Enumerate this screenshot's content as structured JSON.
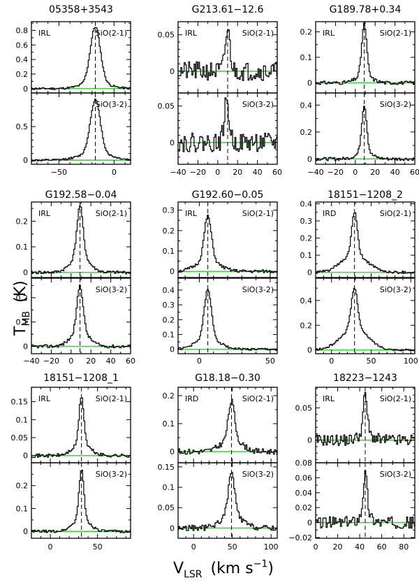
{
  "figure": {
    "ylabel_main": "T",
    "ylabel_sub": "MB",
    "ylabel_unit": "(K)",
    "xlabel_main": "V",
    "xlabel_sub": "LSR",
    "xlabel_unit_pre": "(km s",
    "xlabel_unit_exp": "−1",
    "xlabel_unit_post": ")"
  },
  "colors": {
    "spectrum": "#000000",
    "baseline": "#33dd33",
    "vline": "#000000",
    "frame": "#000000"
  },
  "chart_data": [
    {
      "type": "line",
      "title": "05358+3543",
      "classification": "IRL",
      "xlim": [
        -75,
        15
      ],
      "xticks": [
        -50,
        0
      ],
      "xminor": 10,
      "vlsr": -17,
      "panels": [
        {
          "line": "SiO(2-1)",
          "ylim": [
            -0.06,
            0.92
          ],
          "yticks": [
            0,
            0.2,
            0.4,
            0.6,
            0.8
          ],
          "yminor": 0.1,
          "peak": 0.85,
          "center": -17,
          "narrow": 4.5,
          "wide": 12,
          "wideFrac": 0.1,
          "noise": 0.015,
          "seed": 11
        },
        {
          "line": "SiO(3-2)",
          "ylim": [
            -0.06,
            1.0
          ],
          "yticks": [
            0,
            0.5
          ],
          "yminor": 0.1,
          "peak": 0.9,
          "center": -17,
          "narrow": 4.5,
          "wide": 14,
          "wideFrac": 0.12,
          "noise": 0.015,
          "seed": 12
        }
      ]
    },
    {
      "type": "line",
      "title": "G213.61−12.6",
      "classification": "IRL",
      "xlim": [
        -40,
        60
      ],
      "xticks": [
        -40,
        -20,
        0,
        20,
        40,
        60
      ],
      "xminor": 10,
      "vlsr": 10,
      "panels": [
        {
          "line": "SiO(2-1)",
          "ylim": [
            -0.03,
            0.068
          ],
          "yticks": [
            0,
            0.05
          ],
          "yminor": 0.01,
          "peak": 0.055,
          "center": 10,
          "narrow": 2.5,
          "wide": 6,
          "wideFrac": 0.0,
          "noise": 0.013,
          "seed": 21
        },
        {
          "line": "SiO(3-2)",
          "ylim": [
            -0.03,
            0.068
          ],
          "yticks": [
            0,
            0.05
          ],
          "yminor": 0.01,
          "peak": 0.055,
          "center": 9,
          "narrow": 2.5,
          "wide": 6,
          "wideFrac": 0.0,
          "noise": 0.013,
          "seed": 22
        }
      ]
    },
    {
      "type": "line",
      "title": "G189.78+0.34",
      "classification": "IRL",
      "xlim": [
        -40,
        60
      ],
      "xticks": [
        -40,
        -20,
        0,
        20,
        40,
        60
      ],
      "xminor": 10,
      "vlsr": 9,
      "panels": [
        {
          "line": "SiO(2-1)",
          "ylim": [
            -0.04,
            0.24
          ],
          "yticks": [
            0,
            0.1,
            0.2
          ],
          "yminor": 0.05,
          "peak": 0.23,
          "center": 9,
          "narrow": 2.5,
          "wide": 8,
          "wideFrac": 0.12,
          "noise": 0.007,
          "seed": 31
        },
        {
          "line": "SiO(3-2)",
          "ylim": [
            -0.04,
            0.49
          ],
          "yticks": [
            0,
            0.2,
            0.4
          ],
          "yminor": 0.1,
          "peak": 0.4,
          "center": 9,
          "narrow": 2.5,
          "wide": 8,
          "wideFrac": 0.12,
          "noise": 0.012,
          "seed": 32
        }
      ]
    },
    {
      "type": "line",
      "title": "G192.58−0.04",
      "classification": "IRL",
      "xlim": [
        -40,
        60
      ],
      "xticks": [
        -40,
        -20,
        0,
        20,
        40,
        60
      ],
      "xminor": 10,
      "vlsr": 9,
      "panels": [
        {
          "line": "SiO(2-1)",
          "ylim": [
            -0.02,
            0.275
          ],
          "yticks": [
            0,
            0.1,
            0.2
          ],
          "yminor": 0.05,
          "peak": 0.26,
          "center": 9,
          "narrow": 3,
          "wide": 9,
          "wideFrac": 0.25,
          "noise": 0.006,
          "seed": 41
        },
        {
          "line": "SiO(3-2)",
          "ylim": [
            -0.03,
            0.28
          ],
          "yticks": [
            0,
            0.1,
            0.2
          ],
          "yminor": 0.05,
          "peak": 0.25,
          "center": 9,
          "narrow": 3,
          "wide": 9,
          "wideFrac": 0.25,
          "noise": 0.007,
          "seed": 42
        }
      ]
    },
    {
      "type": "line",
      "title": "G192.60−0.05",
      "classification": "IRL",
      "xlim": [
        -15,
        55
      ],
      "xticks": [
        0,
        50
      ],
      "xminor": 10,
      "vlsr": 6,
      "panels": [
        {
          "line": "SiO(2-1)",
          "ylim": [
            -0.03,
            0.34
          ],
          "yticks": [
            0,
            0.1,
            0.2,
            0.3
          ],
          "yminor": 0.05,
          "peak": 0.27,
          "center": 6,
          "narrow": 2.5,
          "wide": 8,
          "wideFrac": 0.2,
          "noise": 0.008,
          "seed": 51
        },
        {
          "line": "SiO(3-2)",
          "ylim": [
            -0.03,
            0.48
          ],
          "yticks": [
            0,
            0.1,
            0.2,
            0.3,
            0.4
          ],
          "yminor": 0.05,
          "peak": 0.4,
          "center": 6,
          "narrow": 2.5,
          "wide": 8,
          "wideFrac": 0.2,
          "noise": 0.008,
          "seed": 52
        }
      ]
    },
    {
      "type": "line",
      "title": "18151−1208_2",
      "classification": "IRD",
      "xlim": [
        -20,
        105
      ],
      "xticks": [
        0,
        50,
        100
      ],
      "xminor": 10,
      "vlsr": 29,
      "panels": [
        {
          "line": "SiO(2-1)",
          "ylim": [
            -0.03,
            0.41
          ],
          "yticks": [
            0,
            0.1,
            0.2,
            0.3,
            0.4
          ],
          "yminor": 0.05,
          "peak": 0.35,
          "center": 29,
          "narrow": 3.5,
          "wide": 16,
          "wideFrac": 0.3,
          "noise": 0.008,
          "seed": 61
        },
        {
          "line": "SiO(3-2)",
          "ylim": [
            -0.03,
            0.58
          ],
          "yticks": [
            0,
            0.2,
            0.4
          ],
          "yminor": 0.1,
          "peak": 0.5,
          "center": 29,
          "narrow": 4,
          "wide": 17,
          "wideFrac": 0.35,
          "noise": 0.008,
          "seed": 62
        }
      ]
    },
    {
      "type": "line",
      "title": "18151−1208_1",
      "classification": "IRL",
      "xlim": [
        -20,
        85
      ],
      "xticks": [
        0,
        50
      ],
      "xminor": 10,
      "vlsr": 33,
      "panels": [
        {
          "line": "SiO(2-1)",
          "ylim": [
            -0.02,
            0.19
          ],
          "yticks": [
            0,
            0.05,
            0.1,
            0.15
          ],
          "yminor": 0.05,
          "peak": 0.165,
          "center": 33,
          "narrow": 2.5,
          "wide": 9,
          "wideFrac": 0.2,
          "noise": 0.005,
          "seed": 71
        },
        {
          "line": "SiO(3-2)",
          "ylim": [
            -0.03,
            0.3
          ],
          "yticks": [
            0,
            0.1,
            0.2
          ],
          "yminor": 0.05,
          "peak": 0.27,
          "center": 33,
          "narrow": 2.5,
          "wide": 9,
          "wideFrac": 0.2,
          "noise": 0.006,
          "seed": 72
        }
      ]
    },
    {
      "type": "line",
      "title": "G18.18−0.30",
      "classification": "IRD",
      "xlim": [
        -20,
        108
      ],
      "xticks": [
        0,
        50,
        100
      ],
      "xminor": 10,
      "vlsr": 49,
      "panels": [
        {
          "line": "SiO(2-1)",
          "ylim": [
            -0.04,
            0.23
          ],
          "yticks": [
            0,
            0.1,
            0.2
          ],
          "yminor": 0.05,
          "peak": 0.18,
          "center": 49,
          "narrow": 4,
          "wide": 13,
          "wideFrac": 0.25,
          "noise": 0.01,
          "seed": 81
        },
        {
          "line": "SiO(3-2)",
          "ylim": [
            -0.025,
            0.16
          ],
          "yticks": [
            0,
            0.05,
            0.1,
            0.15
          ],
          "yminor": 0.05,
          "peak": 0.135,
          "center": 49,
          "narrow": 4,
          "wide": 13,
          "wideFrac": 0.25,
          "noise": 0.007,
          "seed": 82
        }
      ]
    },
    {
      "type": "line",
      "title": "18223−1243",
      "classification": "IRL",
      "xlim": [
        0,
        90
      ],
      "xticks": [
        0,
        20,
        40,
        60,
        80
      ],
      "xminor": 10,
      "vlsr": 45,
      "panels": [
        {
          "line": "SiO(2-1)",
          "ylim": [
            -0.035,
            0.082
          ],
          "yticks": [
            0,
            0.05
          ],
          "yminor": 0.01,
          "peak": 0.07,
          "center": 45,
          "narrow": 1.8,
          "wide": 6,
          "wideFrac": 0.15,
          "noise": 0.009,
          "seed": 91
        },
        {
          "line": "SiO(3-2)",
          "ylim": [
            -0.021,
            0.08
          ],
          "yticks": [
            -0.02,
            0,
            0.02,
            0.04,
            0.06,
            0.08
          ],
          "yminor": 0.01,
          "peak": 0.065,
          "center": 45,
          "narrow": 1.8,
          "wide": 6,
          "wideFrac": 0.15,
          "noise": 0.008,
          "seed": 92
        }
      ]
    }
  ]
}
